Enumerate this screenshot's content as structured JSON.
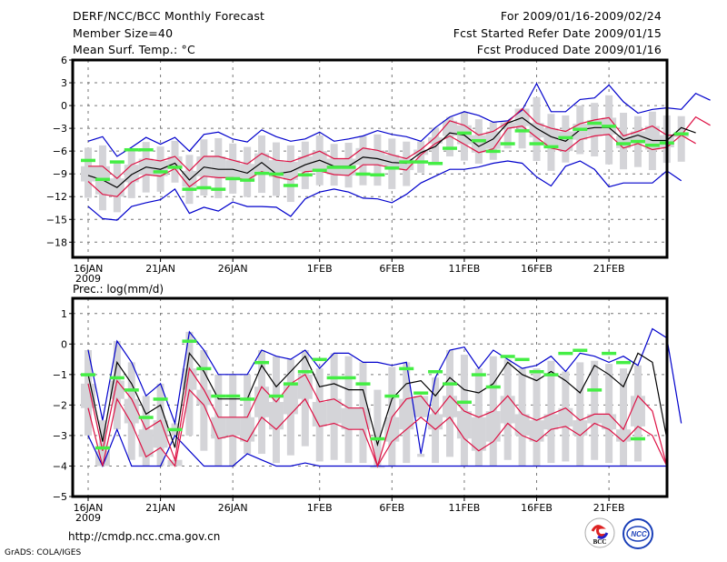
{
  "header": {
    "title": "DERF/NCC/BCC Monthly Forecast",
    "member_size": "Member Size=40",
    "var_label": "Mean Surf. Temp.: °C",
    "period": "For 2009/01/16-2009/02/24",
    "started": "Fcst Started Refer Date 2009/01/15",
    "produced": "Fcst Produced Date 2009/01/16"
  },
  "footer": {
    "url": "http://cmdp.ncc.cma.gov.cn",
    "grads": "GrADS: COLA/IGES",
    "logos": [
      "BCC",
      "NCC"
    ]
  },
  "colors": {
    "max_min": "#0000cc",
    "spread": "#dd1144",
    "mean": "#000000",
    "marker": "#44ee44",
    "box": "#d4d4d8"
  },
  "chart_data": [
    {
      "type": "line",
      "title": "Mean Surf. Temp.: °C",
      "xlabel": "",
      "ylabel": "",
      "ylim": [
        -20,
        6
      ],
      "yticks": [
        6,
        3,
        0,
        -3,
        -6,
        -9,
        -12,
        -15,
        -18
      ],
      "xtick_labels": [
        "16JAN",
        "21JAN",
        "26JAN",
        "1FEB",
        "6FEB",
        "11FEB",
        "16FEB",
        "21FEB"
      ],
      "xtick_days": [
        0,
        5,
        10,
        16,
        21,
        26,
        31,
        36
      ],
      "year_label": "2009",
      "grid": true,
      "x_days": 40,
      "series": [
        {
          "name": "max",
          "values": [
            -4.7,
            -4.1,
            -6.7,
            -5.5,
            -4.2,
            -5.1,
            -4.2,
            -6.0,
            -3.8,
            -3.5,
            -4.4,
            -4.8,
            -3.2,
            -4.1,
            -4.7,
            -4.4,
            -3.5,
            -4.7,
            -4.4,
            -4.0,
            -3.3,
            -3.8,
            -4.1,
            -4.7,
            -2.9,
            -1.5,
            -0.8,
            -1.3,
            -2.2,
            -2.0,
            -0.6,
            2.9,
            -0.8,
            -0.8,
            0.8,
            1.0,
            2.7,
            0.5,
            -1.0,
            -0.5,
            -0.3,
            -0.5,
            1.6,
            0.7
          ]
        },
        {
          "name": "upper",
          "values": [
            -8.0,
            -8.0,
            -9.6,
            -7.8,
            -7.0,
            -7.3,
            -6.7,
            -8.6,
            -6.7,
            -6.7,
            -7.2,
            -7.7,
            -6.3,
            -7.2,
            -7.4,
            -6.7,
            -6.0,
            -7.0,
            -7.0,
            -5.6,
            -5.9,
            -6.5,
            -7.0,
            -5.8,
            -4.2,
            -2.0,
            -2.6,
            -3.9,
            -3.4,
            -2.2,
            -0.4,
            -2.3,
            -3.0,
            -3.4,
            -2.4,
            -1.9,
            -1.6,
            -4.0,
            -3.4,
            -2.7,
            -3.9,
            -3.9,
            -1.5,
            -2.6
          ]
        },
        {
          "name": "mean",
          "values": [
            -9.2,
            -9.8,
            -10.8,
            -9.1,
            -8.1,
            -8.4,
            -7.6,
            -9.8,
            -8.1,
            -8.4,
            -8.4,
            -8.9,
            -7.5,
            -9.0,
            -8.7,
            -7.8,
            -7.2,
            -8.0,
            -8.0,
            -6.8,
            -7.0,
            -7.5,
            -7.6,
            -6.2,
            -5.4,
            -3.6,
            -3.9,
            -5.4,
            -4.4,
            -2.3,
            -1.6,
            -3.0,
            -4.1,
            -4.7,
            -3.2,
            -2.9,
            -2.9,
            -4.5,
            -3.9,
            -4.6,
            -4.6,
            -2.9,
            -3.6
          ]
        },
        {
          "name": "lower",
          "values": [
            -10.0,
            -11.7,
            -12.0,
            -10.1,
            -9.1,
            -9.3,
            -8.3,
            -10.7,
            -9.3,
            -9.5,
            -9.5,
            -9.8,
            -8.7,
            -9.4,
            -9.8,
            -8.7,
            -8.6,
            -9.1,
            -9.2,
            -7.8,
            -7.8,
            -8.2,
            -8.5,
            -6.5,
            -5.0,
            -4.0,
            -5.1,
            -6.2,
            -5.7,
            -3.0,
            -2.7,
            -4.2,
            -5.6,
            -6.0,
            -4.5,
            -4.0,
            -3.8,
            -5.6,
            -5.0,
            -5.8,
            -5.5,
            -3.9,
            -5.0
          ]
        },
        {
          "name": "min",
          "values": [
            -13.3,
            -14.9,
            -15.1,
            -13.3,
            -12.8,
            -12.4,
            -11.0,
            -14.2,
            -13.4,
            -13.9,
            -12.7,
            -13.3,
            -13.3,
            -13.4,
            -14.6,
            -12.3,
            -11.4,
            -11.0,
            -11.4,
            -12.2,
            -12.3,
            -12.8,
            -11.7,
            -10.2,
            -9.3,
            -8.4,
            -8.4,
            -8.1,
            -7.6,
            -7.3,
            -7.6,
            -9.4,
            -10.6,
            -8.0,
            -7.3,
            -8.4,
            -10.7,
            -10.2,
            -10.2,
            -10.2,
            -8.6,
            -9.9
          ]
        },
        {
          "name": "obs",
          "values": [
            -7.2,
            -9.7,
            -7.4,
            -5.8,
            -5.8,
            -8.7,
            -8.1,
            -11.0,
            -10.8,
            -11.0,
            -9.6,
            -9.8,
            -8.9,
            -9.0,
            -10.5,
            -9.1,
            -8.5,
            -8.1,
            -8.1,
            -9.0,
            -9.1,
            -8.2,
            -7.4,
            -7.4,
            -7.6,
            -5.6,
            -3.6,
            -4.6,
            -6.0,
            -5.0,
            -3.3,
            -5.0,
            -5.4,
            -4.2,
            -3.1,
            -2.3,
            -2.7,
            -5.0,
            -4.7,
            -5.2,
            -4.9,
            -3.7
          ]
        }
      ]
    },
    {
      "type": "line",
      "title": "Prec.: log(mm/d)",
      "xlabel": "",
      "ylabel": "",
      "ylim": [
        -5,
        1.5
      ],
      "yticks": [
        1,
        0,
        -1,
        -2,
        -3,
        -4,
        -5
      ],
      "xtick_labels": [
        "16JAN",
        "21JAN",
        "26JAN",
        "1FEB",
        "6FEB",
        "11FEB",
        "16FEB",
        "21FEB"
      ],
      "xtick_days": [
        0,
        5,
        10,
        16,
        21,
        26,
        31,
        36
      ],
      "year_label": "2009",
      "grid": true,
      "x_days": 40,
      "series": [
        {
          "name": "max",
          "values": [
            -0.2,
            -2.5,
            0.1,
            -0.6,
            -1.7,
            -1.3,
            -2.6,
            0.4,
            -0.2,
            -1.0,
            -1.0,
            -1.0,
            -0.2,
            -0.4,
            -0.5,
            -0.2,
            -0.8,
            -0.3,
            -0.3,
            -0.6,
            -0.6,
            -0.7,
            -0.6,
            -3.6,
            -1.1,
            -0.2,
            -0.1,
            -0.8,
            -0.2,
            -0.5,
            -0.8,
            -0.7,
            -0.4,
            -0.9,
            -0.3,
            -0.4,
            -0.6,
            -0.4,
            -0.7,
            0.5,
            0.2,
            -2.6
          ]
        },
        {
          "name": "mean",
          "values": [
            -1.0,
            -3.2,
            -0.6,
            -1.3,
            -2.3,
            -2.0,
            -3.4,
            -0.3,
            -0.9,
            -1.8,
            -1.8,
            -1.8,
            -0.7,
            -1.4,
            -0.9,
            -0.4,
            -1.4,
            -1.3,
            -1.5,
            -1.5,
            -3.3,
            -1.8,
            -1.3,
            -1.2,
            -1.7,
            -1.1,
            -1.5,
            -1.6,
            -1.3,
            -0.6,
            -1.0,
            -1.2,
            -0.9,
            -1.2,
            -1.6,
            -0.7,
            -1.0,
            -1.4,
            -0.3,
            -0.6,
            -3.1
          ]
        },
        {
          "name": "upper",
          "values": [
            -1.3,
            -3.5,
            -1.2,
            -1.8,
            -2.8,
            -2.5,
            -3.8,
            -0.8,
            -1.5,
            -2.4,
            -2.4,
            -2.4,
            -1.4,
            -1.9,
            -1.3,
            -1.0,
            -1.9,
            -1.8,
            -2.1,
            -2.1,
            -4.0,
            -2.4,
            -1.8,
            -1.7,
            -2.3,
            -1.7,
            -2.2,
            -2.4,
            -2.2,
            -1.7,
            -2.3,
            -2.5,
            -2.3,
            -2.1,
            -2.5,
            -2.3,
            -2.3,
            -2.8,
            -1.7,
            -2.2,
            -4.0
          ]
        },
        {
          "name": "lower",
          "values": [
            -2.1,
            -4.0,
            -1.8,
            -2.6,
            -3.7,
            -3.4,
            -4.0,
            -1.5,
            -2.0,
            -3.1,
            -3.0,
            -3.2,
            -2.4,
            -2.8,
            -2.3,
            -1.8,
            -2.7,
            -2.6,
            -2.8,
            -2.8,
            -4.0,
            -3.2,
            -2.8,
            -2.4,
            -2.8,
            -2.4,
            -3.1,
            -3.5,
            -3.2,
            -2.6,
            -3.0,
            -3.2,
            -2.8,
            -2.7,
            -3.0,
            -2.6,
            -2.8,
            -3.2,
            -2.7,
            -3.0,
            -4.0
          ]
        },
        {
          "name": "min",
          "values": [
            -3.0,
            -4.0,
            -2.8,
            -4.0,
            -4.0,
            -4.0,
            -3.0,
            -3.5,
            -4.0,
            -4.0,
            -4.0,
            -3.6,
            -3.8,
            -4.0,
            -4.0,
            -3.9,
            -4.0,
            -4.0,
            -4.0,
            -4.0,
            -4.0,
            -4.0,
            -4.0,
            -4.0,
            -4.0,
            -4.0,
            -4.0,
            -4.0,
            -4.0,
            -4.0,
            -4.0,
            -4.0,
            -4.0,
            -4.0,
            -4.0,
            -4.0,
            -4.0,
            -4.0,
            -4.0,
            -4.0,
            -4.0
          ]
        },
        {
          "name": "obs",
          "values": [
            -1.0,
            -3.4,
            -1.1,
            -1.5,
            -2.4,
            -1.8,
            -2.8,
            0.1,
            -0.8,
            -1.7,
            -1.7,
            -1.8,
            -0.6,
            -1.7,
            -1.3,
            -0.9,
            -0.5,
            -1.1,
            -1.1,
            -1.3,
            -3.1,
            -1.7,
            -0.8,
            -1.6,
            -0.9,
            -1.3,
            -1.9,
            -1.0,
            -1.4,
            -0.4,
            -0.5,
            -0.9,
            -1.0,
            -0.3,
            -0.2,
            -1.5,
            -0.3,
            -0.6,
            -3.1
          ]
        }
      ]
    }
  ]
}
